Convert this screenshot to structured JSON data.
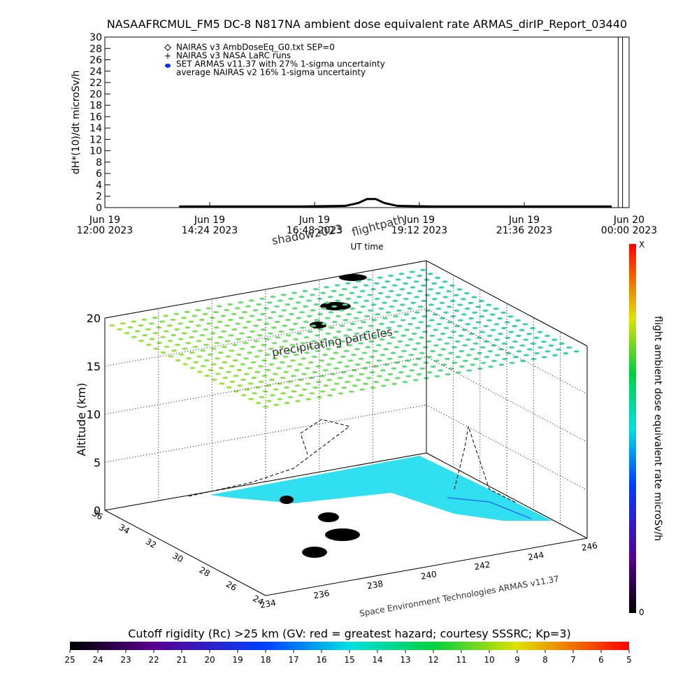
{
  "chart_data": [
    {
      "type": "line",
      "title": "NASAAFRCMUL_FM5 DC-8   N817NA ambient dose equivalent rate ARMAS_dirIP_Report_03440",
      "ylabel": "dH*(10)/dt microSv/h",
      "xlabel": "UT time",
      "xlim": [
        12,
        24
      ],
      "xticks": [
        {
          "value": 12,
          "label": [
            "Jun 19",
            "12:00 2023"
          ]
        },
        {
          "value": 14.4,
          "label": [
            "Jun 19",
            "14:24 2023"
          ]
        },
        {
          "value": 16.8,
          "label": [
            "Jun 19",
            "16:48 2023"
          ]
        },
        {
          "value": 19.2,
          "label": [
            "Jun 19",
            "19:12 2023"
          ]
        },
        {
          "value": 21.6,
          "label": [
            "Jun 19",
            "21:36 2023"
          ]
        },
        {
          "value": 24,
          "label": [
            "Jun 20",
            "00:00 2023"
          ]
        }
      ],
      "ylim": [
        0,
        30
      ],
      "yticks": [
        0,
        2,
        4,
        6,
        8,
        10,
        12,
        14,
        16,
        18,
        20,
        22,
        24,
        26,
        28,
        30
      ],
      "legend": [
        "NAIRAS v3 AmbDoseEq_G0.txt SEP=0",
        "NAIRAS v3 NASA LaRC runs",
        "SET ARMAS v11.37 with 27% 1-sigma uncertainty",
        "average NAIRAS v2 16% 1-sigma uncertainty"
      ],
      "series": [
        {
          "color": "#000000",
          "x": [
            13.7,
            14.5,
            15.5,
            16.5,
            17.5,
            17.8,
            18.0,
            18.2,
            18.4,
            18.7,
            19.5,
            20.5,
            21.5,
            22.5,
            23.6
          ],
          "values": [
            0.2,
            0.2,
            0.2,
            0.2,
            0.3,
            0.8,
            1.5,
            1.5,
            0.8,
            0.3,
            0.2,
            0.2,
            0.2,
            0.2,
            0.2
          ]
        }
      ],
      "vlines": [
        23.75,
        23.85
      ]
    },
    {
      "type": "scatter3d",
      "zlabel": "Altitude (km)",
      "xlim": [
        234,
        246
      ],
      "xticks": [
        234,
        236,
        238,
        240,
        242,
        244,
        246
      ],
      "ylim": [
        24,
        36
      ],
      "yticks": [
        24,
        26,
        28,
        30,
        32,
        34,
        36
      ],
      "zlim": [
        0,
        20
      ],
      "zticks": [
        0,
        5,
        10,
        15,
        20
      ],
      "annotations": [
        "shadow2023",
        "flightpath",
        "precipitating particles",
        "Space Environment Technologies ARMAS v11.37"
      ]
    },
    {
      "type": "colorbar",
      "orientation": "vertical",
      "label": "flight ambient dose equivalent rate microSv/h",
      "top": "X",
      "bottom": 0
    },
    {
      "type": "colorbar",
      "orientation": "horizontal",
      "title": "Cutoff rigidity (Rc) >25 km (GV: red = greatest hazard; courtesy SSSRC; Kp=3)",
      "lim": [
        25,
        5
      ],
      "ticks": [
        25,
        24,
        23,
        22,
        21,
        20,
        19,
        18,
        17,
        16,
        15,
        14,
        13,
        12,
        11,
        10,
        9,
        8,
        7,
        6,
        5
      ]
    }
  ]
}
